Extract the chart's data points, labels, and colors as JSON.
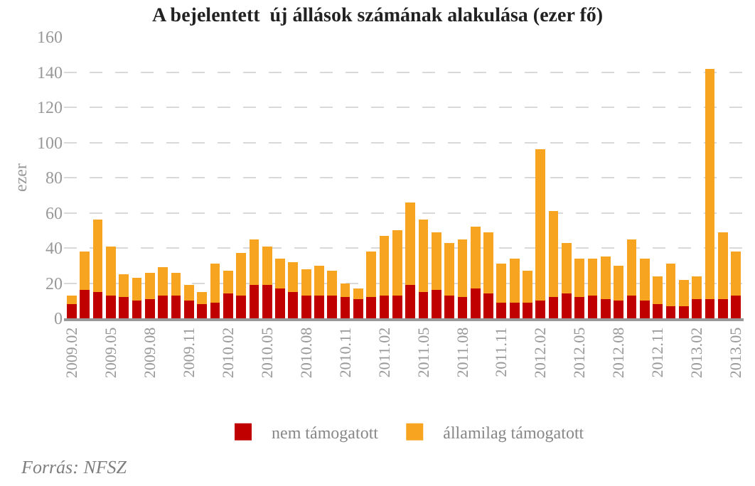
{
  "chart_data": {
    "type": "bar",
    "title": "A bejelentett  új állások számának alakulása (ezer fő)",
    "ylabel": "ezer",
    "categories": [
      "2009.02",
      null,
      null,
      "2009.05",
      null,
      null,
      "2009.08",
      null,
      null,
      "2009.11",
      null,
      null,
      "2010.02",
      null,
      null,
      "2010.05",
      null,
      null,
      "2010.08",
      null,
      null,
      "2010.11",
      null,
      null,
      "2011.02",
      null,
      null,
      "2011.05",
      null,
      null,
      "2011.08",
      null,
      null,
      "2011.11",
      null,
      null,
      "2012.02",
      null,
      null,
      "2012.05",
      null,
      null,
      "2012.08",
      null,
      null,
      "2012.11",
      null,
      null,
      "2013.02",
      null,
      null,
      "2013.05"
    ],
    "stacked": true,
    "series": [
      {
        "name": "nem támogatott",
        "color": "#c00000",
        "values": [
          8,
          16,
          15,
          13,
          12,
          10,
          11,
          13,
          13,
          10,
          8,
          9,
          14,
          13,
          19,
          19,
          17,
          15,
          13,
          13,
          13,
          12,
          11,
          12,
          13,
          13,
          19,
          15,
          16,
          13,
          12,
          17,
          14,
          9,
          9,
          9,
          10,
          12,
          14,
          12,
          13,
          11,
          10,
          13,
          10,
          8,
          7,
          7,
          11,
          11,
          11,
          13
        ]
      },
      {
        "name": "államilag támogatott",
        "color": "#f7a520",
        "values": [
          5,
          22,
          41,
          28,
          13,
          13,
          15,
          16,
          13,
          9,
          7,
          22,
          13,
          24,
          26,
          22,
          17,
          17,
          15,
          17,
          14,
          8,
          6,
          26,
          34,
          37,
          47,
          41,
          33,
          30,
          33,
          35,
          35,
          22,
          25,
          18,
          86,
          49,
          29,
          22,
          21,
          24,
          20,
          32,
          24,
          16,
          24,
          15,
          13,
          131,
          38,
          25
        ]
      }
    ],
    "ylim": [
      0,
      160
    ],
    "yticks": [
      0,
      20,
      40,
      60,
      80,
      100,
      120,
      140,
      160
    ],
    "grid": "y",
    "legend": "bottom",
    "annotations": [
      "Forrás: NFSZ"
    ]
  }
}
